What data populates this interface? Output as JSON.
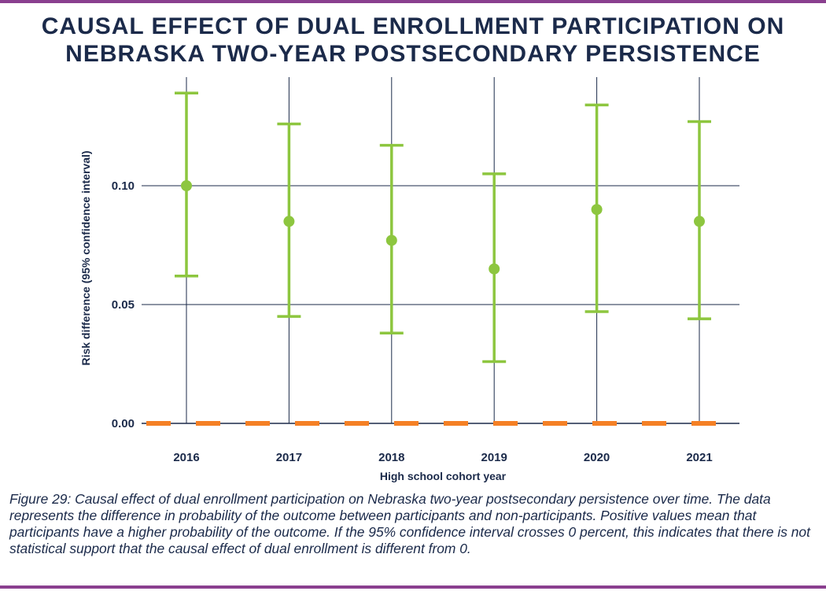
{
  "title": {
    "line1": "CAUSAL EFFECT OF DUAL ENROLLMENT PARTICIPATION ON",
    "line2": "NEBRASKA TWO-YEAR POSTSECONDARY PERSISTENCE"
  },
  "caption": "Figure 29: Causal effect of dual enrollment participation on Nebraska two-year postsecondary persistence over time. The data represents the difference in probability of the outcome between participants and non-participants. Positive values mean that participants have a higher probability of the outcome. If the 95% confidence interval crosses 0 percent, this indicates that there is not statistical support that the causal effect of dual enrollment is different from 0.",
  "colors": {
    "point": "#8dc63f",
    "zero_line": "#f58025",
    "grid": "#1b2a4a",
    "rule": "#8a3f8f"
  },
  "chart_data": {
    "type": "scatter",
    "title": "CAUSAL EFFECT OF DUAL ENROLLMENT PARTICIPATION ON NEBRASKA TWO-YEAR POSTSECONDARY PERSISTENCE",
    "xlabel": "High school cohort year",
    "ylabel": "Risk difference (95% confidence interval)",
    "categories": [
      "2016",
      "2017",
      "2018",
      "2019",
      "2020",
      "2021"
    ],
    "ylim": [
      0,
      0.14
    ],
    "yticks": [
      0.0,
      0.05,
      0.1
    ],
    "ytick_labels": [
      "0.00",
      "0.05",
      "0.10"
    ],
    "reference_line": 0,
    "grid": true,
    "series": [
      {
        "name": "Risk difference",
        "values": [
          0.1,
          0.085,
          0.077,
          0.065,
          0.09,
          0.085
        ],
        "ci_lower": [
          0.062,
          0.045,
          0.038,
          0.026,
          0.047,
          0.044
        ],
        "ci_upper": [
          0.139,
          0.126,
          0.117,
          0.105,
          0.134,
          0.127
        ]
      }
    ]
  }
}
